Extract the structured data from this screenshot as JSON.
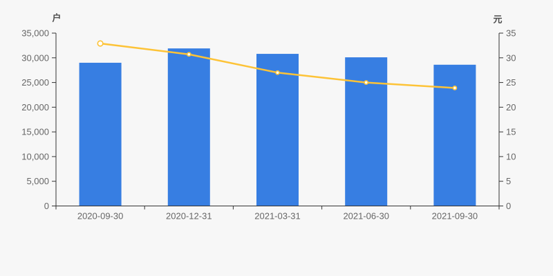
{
  "chart": {
    "left_axis_unit": "户",
    "right_axis_unit": "元",
    "colors": {
      "background": "#f7f7f7",
      "bar": "#377ee2",
      "line": "#fdc337",
      "marker_fill": "#ffffff",
      "axis": "#333333",
      "tick_label": "#666666",
      "unit_label": "#4d4d4d"
    }
  },
  "chart_data": {
    "type": "bar",
    "title": "",
    "categories": [
      "2020-09-30",
      "2020-12-31",
      "2021-03-31",
      "2021-06-30",
      "2021-09-30"
    ],
    "series": [
      {
        "name": "户",
        "type": "bar",
        "axis": "left",
        "values": [
          29000,
          31900,
          30800,
          30100,
          28600
        ]
      },
      {
        "name": "元",
        "type": "line",
        "axis": "right",
        "values": [
          32.9,
          30.7,
          27.0,
          25.0,
          23.9
        ]
      }
    ],
    "left_axis": {
      "label": "户",
      "min": 0,
      "max": 35000,
      "step": 5000,
      "tick_labels": [
        "0",
        "5,000",
        "10,000",
        "15,000",
        "20,000",
        "25,000",
        "30,000",
        "35,000"
      ]
    },
    "right_axis": {
      "label": "元",
      "min": 0,
      "max": 35,
      "step": 5,
      "tick_labels": [
        "0",
        "5",
        "10",
        "15",
        "20",
        "25",
        "30",
        "35"
      ]
    },
    "grid": false,
    "legend": false
  }
}
